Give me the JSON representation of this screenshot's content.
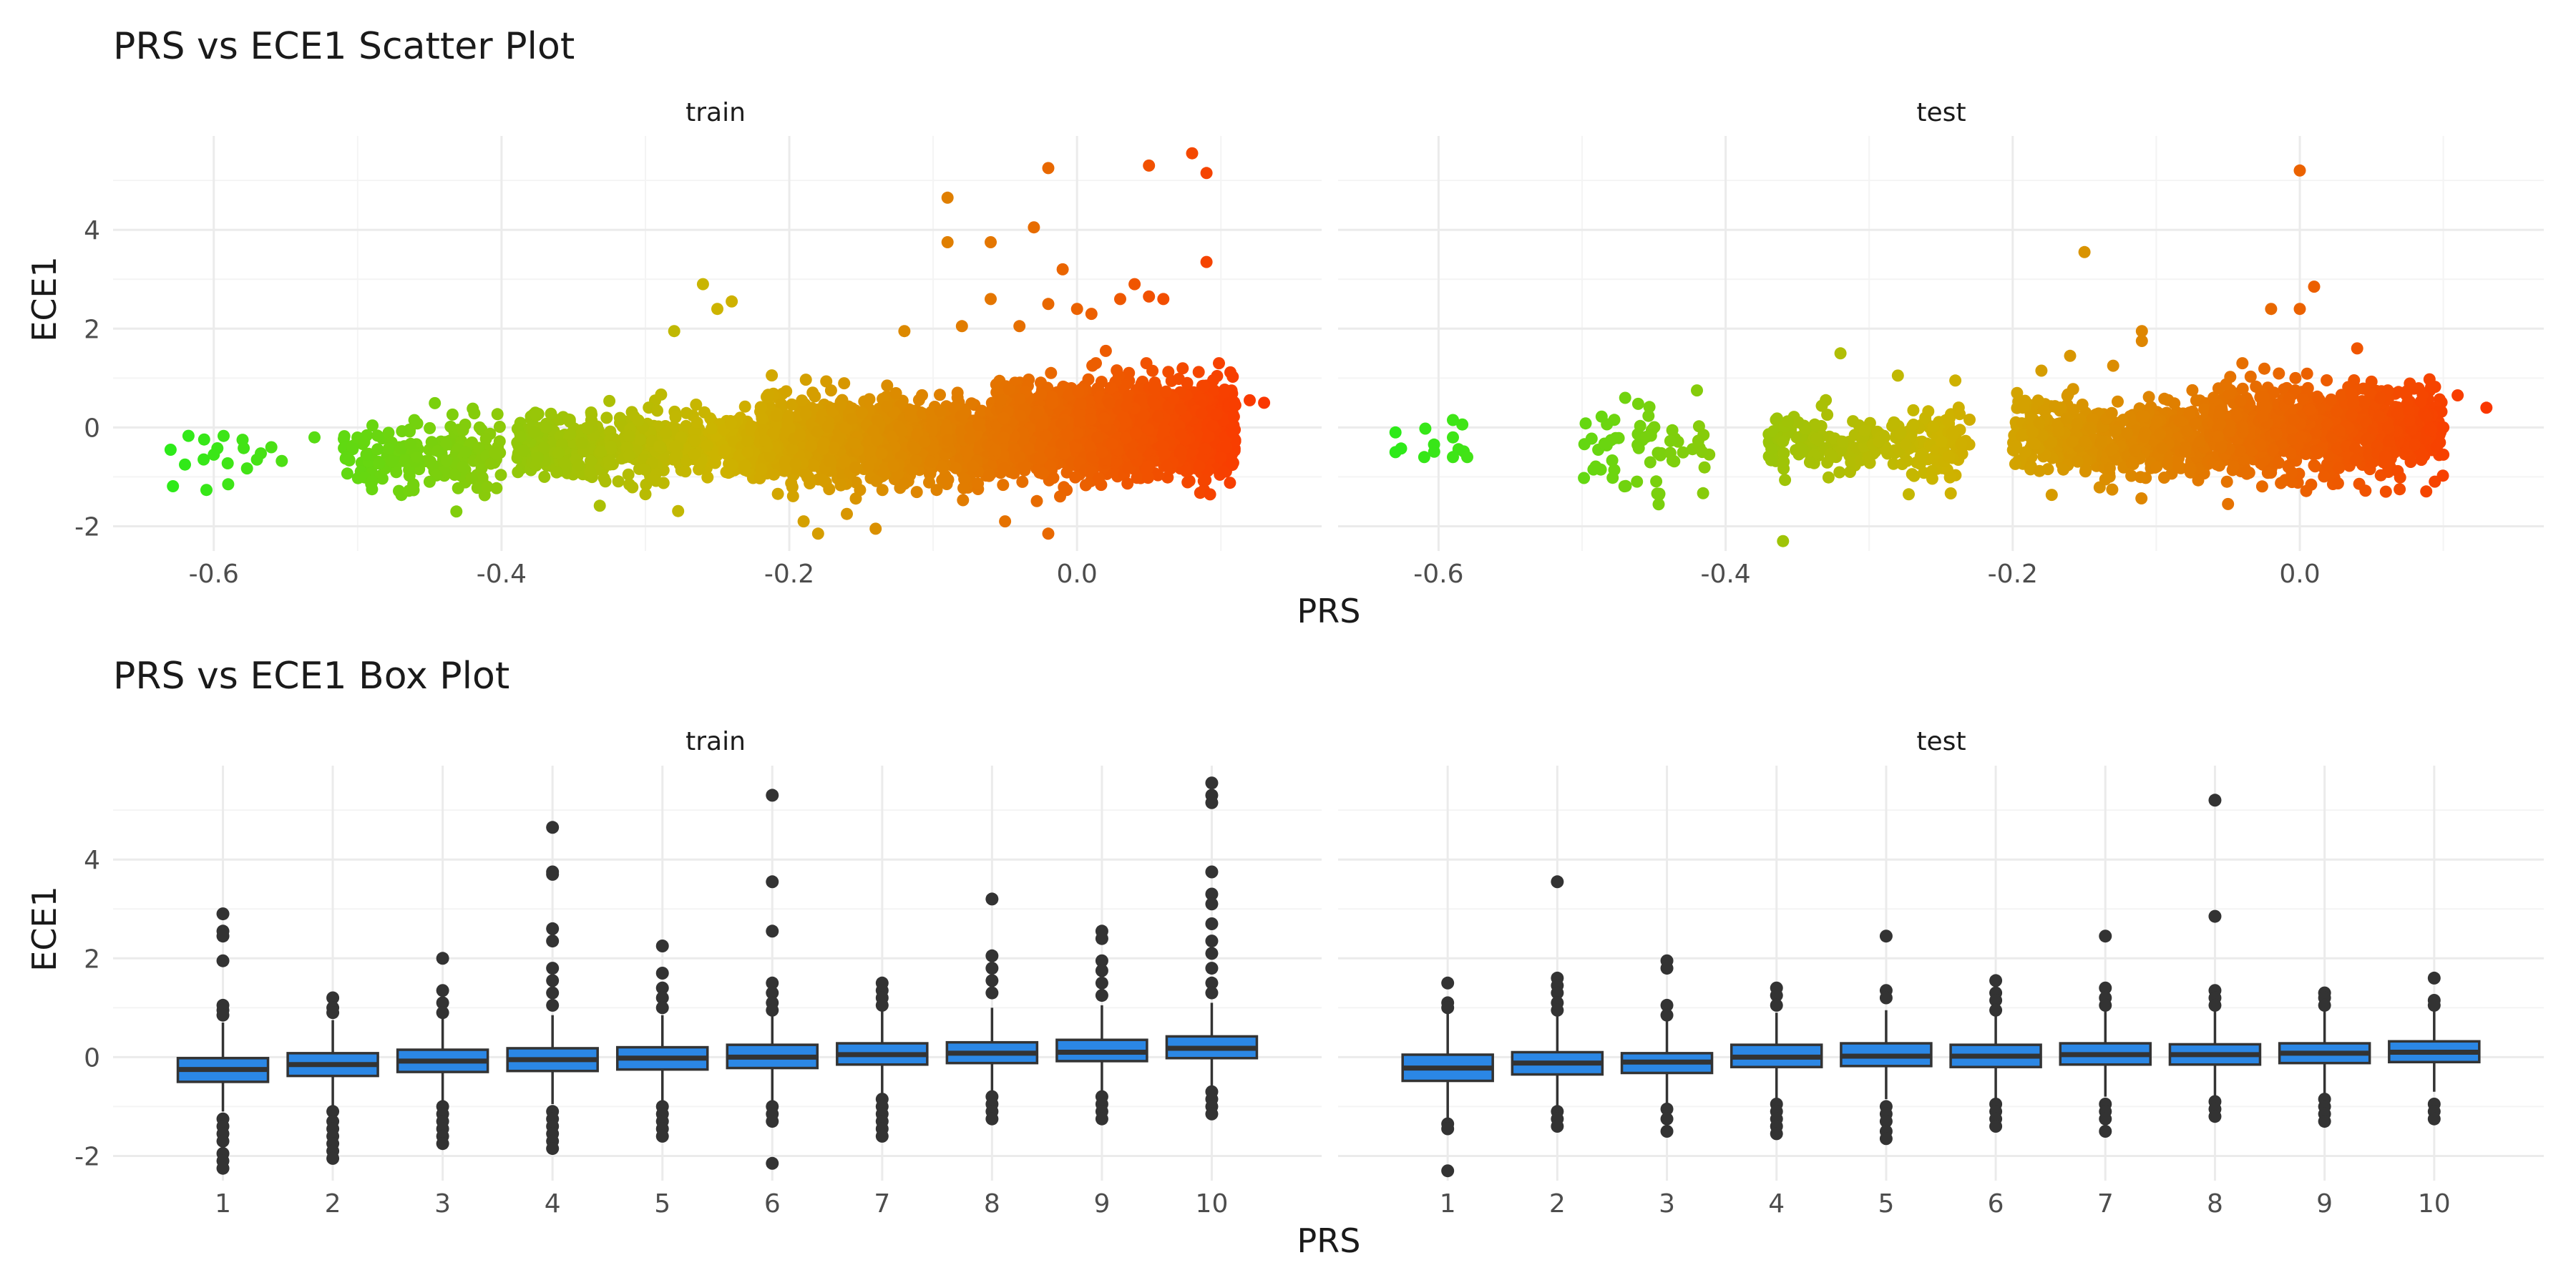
{
  "colors": {
    "grid_major": "#ebebeb",
    "grid_minor": "#f4f4f4",
    "box_fill": "#2b87e5",
    "box_line": "#333333",
    "outlier": "#333333",
    "gradient_low": "#1cf01c",
    "gradient_high": "#ff2a00"
  },
  "chart_data": [
    {
      "type": "scatter",
      "title": "PRS vs ECE1 Scatter Plot",
      "xlabel": "PRS",
      "ylabel": "ECE1",
      "facets": [
        "train",
        "test"
      ],
      "xlim": [
        -0.67,
        0.17
      ],
      "ylim": [
        -2.5,
        5.9
      ],
      "xticks": [
        -0.6,
        -0.4,
        -0.2,
        0.0
      ],
      "xtick_labels": [
        "-0.6",
        "-0.4",
        "-0.2",
        "0.0"
      ],
      "yticks": [
        -2,
        0,
        2,
        4
      ],
      "ytick_labels": [
        "-2",
        "0",
        "2",
        "4"
      ],
      "grid": true,
      "color_scale": {
        "variable": "PRS",
        "low": "#1cf01c",
        "high": "#ff2a00"
      },
      "series": [
        {
          "facet": "train",
          "clusters": [
            {
              "x_min": -0.63,
              "x_max": -0.55,
              "y_center": -0.5,
              "y_spread": 0.25,
              "count": 12
            },
            {
              "x_min": -0.51,
              "x_max": -0.4,
              "y_center": -0.55,
              "y_spread": 0.35,
              "count": 180
            },
            {
              "x_min": -0.39,
              "x_max": -0.22,
              "y_center": -0.35,
              "y_spread": 0.32,
              "count": 650
            },
            {
              "x_min": -0.22,
              "x_max": -0.06,
              "y_center": -0.25,
              "y_spread": 0.38,
              "count": 1300
            },
            {
              "x_min": -0.06,
              "x_max": 0.11,
              "y_center": -0.05,
              "y_spread": 0.42,
              "count": 2200
            }
          ],
          "outliers": [
            [
              -0.63,
              -0.45
            ],
            [
              -0.62,
              -0.75
            ],
            [
              -0.6,
              -0.55
            ],
            [
              -0.59,
              -1.15
            ],
            [
              -0.58,
              -0.25
            ],
            [
              -0.57,
              -0.65
            ],
            [
              -0.56,
              -0.4
            ],
            [
              -0.53,
              -0.2
            ],
            [
              -0.49,
              -1.25
            ],
            [
              -0.45,
              -1.1
            ],
            [
              -0.42,
              0.38
            ],
            [
              -0.41,
              -1.2
            ],
            [
              -0.3,
              -1.35
            ],
            [
              -0.28,
              1.95
            ],
            [
              -0.26,
              2.9
            ],
            [
              -0.25,
              2.4
            ],
            [
              -0.24,
              2.55
            ],
            [
              -0.19,
              -1.9
            ],
            [
              -0.18,
              -2.15
            ],
            [
              -0.16,
              -1.75
            ],
            [
              -0.14,
              -2.05
            ],
            [
              -0.12,
              1.95
            ],
            [
              -0.09,
              3.75
            ],
            [
              -0.09,
              4.65
            ],
            [
              -0.08,
              2.05
            ],
            [
              -0.06,
              2.6
            ],
            [
              -0.06,
              3.75
            ],
            [
              -0.05,
              -1.9
            ],
            [
              -0.04,
              2.05
            ],
            [
              -0.03,
              4.05
            ],
            [
              -0.02,
              2.5
            ],
            [
              -0.02,
              5.25
            ],
            [
              -0.02,
              -2.15
            ],
            [
              -0.01,
              3.2
            ],
            [
              0.0,
              2.4
            ],
            [
              0.01,
              2.3
            ],
            [
              0.02,
              1.55
            ],
            [
              0.03,
              2.6
            ],
            [
              0.04,
              2.9
            ],
            [
              0.05,
              5.3
            ],
            [
              0.05,
              2.65
            ],
            [
              0.06,
              2.6
            ],
            [
              0.08,
              5.55
            ],
            [
              0.09,
              5.15
            ],
            [
              0.09,
              3.35
            ],
            [
              0.1,
              -0.6
            ],
            [
              0.11,
              0.45
            ],
            [
              0.12,
              0.55
            ],
            [
              0.13,
              0.5
            ]
          ]
        },
        {
          "facet": "test",
          "clusters": [
            {
              "x_min": -0.63,
              "x_max": -0.58,
              "y_center": -0.35,
              "y_spread": 0.3,
              "count": 7
            },
            {
              "x_min": -0.5,
              "x_max": -0.41,
              "y_center": -0.45,
              "y_spread": 0.4,
              "count": 60
            },
            {
              "x_min": -0.37,
              "x_max": -0.23,
              "y_center": -0.3,
              "y_spread": 0.32,
              "count": 250
            },
            {
              "x_min": -0.2,
              "x_max": -0.06,
              "y_center": -0.25,
              "y_spread": 0.38,
              "count": 500
            },
            {
              "x_min": -0.06,
              "x_max": 0.1,
              "y_center": -0.05,
              "y_spread": 0.42,
              "count": 900
            }
          ],
          "outliers": [
            [
              -0.63,
              -0.1
            ],
            [
              -0.63,
              -0.5
            ],
            [
              -0.61,
              -0.6
            ],
            [
              -0.59,
              -0.6
            ],
            [
              -0.59,
              -0.2
            ],
            [
              -0.58,
              -0.6
            ],
            [
              -0.59,
              0.15
            ],
            [
              -0.47,
              0.6
            ],
            [
              -0.42,
              0.75
            ],
            [
              -0.36,
              -2.3
            ],
            [
              -0.32,
              1.5
            ],
            [
              -0.28,
              1.05
            ],
            [
              -0.24,
              0.95
            ],
            [
              -0.18,
              1.15
            ],
            [
              -0.16,
              1.45
            ],
            [
              -0.15,
              3.55
            ],
            [
              -0.13,
              1.25
            ],
            [
              -0.11,
              1.95
            ],
            [
              -0.11,
              1.75
            ],
            [
              -0.05,
              -1.55
            ],
            [
              -0.04,
              1.3
            ],
            [
              -0.02,
              2.4
            ],
            [
              0.0,
              5.2
            ],
            [
              0.0,
              2.4
            ],
            [
              0.01,
              2.85
            ],
            [
              0.04,
              1.6
            ],
            [
              0.06,
              -1.3
            ],
            [
              0.08,
              -0.35
            ],
            [
              0.1,
              -0.55
            ],
            [
              0.11,
              0.65
            ],
            [
              0.13,
              0.4
            ]
          ]
        }
      ]
    },
    {
      "type": "box",
      "title": "PRS vs ECE1 Box Plot",
      "xlabel": "PRS",
      "ylabel": "ECE1",
      "facets": [
        "train",
        "test"
      ],
      "categories": [
        "1",
        "2",
        "3",
        "4",
        "5",
        "6",
        "7",
        "8",
        "9",
        "10"
      ],
      "ylim": [
        -2.5,
        5.9
      ],
      "yticks": [
        -2,
        0,
        2,
        4
      ],
      "ytick_labels": [
        "-2",
        "0",
        "2",
        "4"
      ],
      "grid": true,
      "series": [
        {
          "name": "train",
          "boxes": [
            {
              "category": "1",
              "q1": -0.5,
              "median": -0.25,
              "q3": -0.02,
              "whisker_low": -1.1,
              "whisker_high": 0.7,
              "outliers": [
                2.9,
                2.55,
                2.45,
                1.95,
                1.05,
                0.95,
                0.85,
                -1.25,
                -1.4,
                -1.55,
                -1.7,
                -1.95,
                -2.1,
                -2.25
              ]
            },
            {
              "category": "2",
              "q1": -0.38,
              "median": -0.15,
              "q3": 0.08,
              "whisker_low": -1.0,
              "whisker_high": 0.75,
              "outliers": [
                1.2,
                1.0,
                0.9,
                -1.1,
                -1.3,
                -1.45,
                -1.6,
                -1.75,
                -1.9,
                -2.05
              ]
            },
            {
              "category": "3",
              "q1": -0.3,
              "median": -0.08,
              "q3": 0.15,
              "whisker_low": -0.95,
              "whisker_high": 0.8,
              "outliers": [
                2.0,
                1.35,
                1.1,
                0.9,
                -1.0,
                -1.15,
                -1.3,
                -1.45,
                -1.6,
                -1.75
              ]
            },
            {
              "category": "4",
              "q1": -0.28,
              "median": -0.05,
              "q3": 0.18,
              "whisker_low": -0.95,
              "whisker_high": 0.85,
              "outliers": [
                4.65,
                3.75,
                3.7,
                2.6,
                2.35,
                1.8,
                1.55,
                1.3,
                1.05,
                -1.1,
                -1.25,
                -1.4,
                -1.55,
                -1.7,
                -1.85
              ]
            },
            {
              "category": "5",
              "q1": -0.25,
              "median": -0.02,
              "q3": 0.2,
              "whisker_low": -0.9,
              "whisker_high": 0.85,
              "outliers": [
                2.25,
                1.7,
                1.4,
                1.2,
                1.0,
                -1.0,
                -1.15,
                -1.3,
                -1.45,
                -1.6
              ]
            },
            {
              "category": "6",
              "q1": -0.22,
              "median": 0.0,
              "q3": 0.25,
              "whisker_low": -0.9,
              "whisker_high": 0.9,
              "outliers": [
                5.3,
                3.55,
                2.55,
                1.5,
                1.3,
                1.1,
                0.95,
                -1.0,
                -1.15,
                -1.3,
                -2.15
              ]
            },
            {
              "category": "7",
              "q1": -0.15,
              "median": 0.05,
              "q3": 0.28,
              "whisker_low": -0.75,
              "whisker_high": 0.95,
              "outliers": [
                1.5,
                1.35,
                1.2,
                1.05,
                -0.85,
                -1.0,
                -1.15,
                -1.3,
                -1.45,
                -1.6
              ]
            },
            {
              "category": "8",
              "q1": -0.12,
              "median": 0.08,
              "q3": 0.3,
              "whisker_low": -0.75,
              "whisker_high": 1.0,
              "outliers": [
                3.2,
                2.05,
                1.8,
                1.55,
                1.3,
                -0.8,
                -0.95,
                -1.1,
                -1.25
              ]
            },
            {
              "category": "9",
              "q1": -0.08,
              "median": 0.1,
              "q3": 0.35,
              "whisker_low": -0.7,
              "whisker_high": 1.05,
              "outliers": [
                2.55,
                2.4,
                1.95,
                1.75,
                1.5,
                1.25,
                -0.8,
                -0.95,
                -1.1,
                -1.25
              ]
            },
            {
              "category": "10",
              "q1": -0.02,
              "median": 0.18,
              "q3": 0.42,
              "whisker_low": -0.6,
              "whisker_high": 1.1,
              "outliers": [
                5.55,
                5.3,
                5.15,
                3.75,
                3.3,
                3.1,
                2.7,
                2.35,
                2.1,
                1.8,
                1.5,
                1.3,
                -0.7,
                -0.85,
                -1.0,
                -1.15
              ]
            }
          ]
        },
        {
          "name": "test",
          "boxes": [
            {
              "category": "1",
              "q1": -0.48,
              "median": -0.22,
              "q3": 0.05,
              "whisker_low": -1.25,
              "whisker_high": 0.9,
              "outliers": [
                1.5,
                1.1,
                1.0,
                -1.35,
                -1.45,
                -2.3
              ]
            },
            {
              "category": "2",
              "q1": -0.35,
              "median": -0.12,
              "q3": 0.1,
              "whisker_low": -1.0,
              "whisker_high": 0.85,
              "outliers": [
                3.55,
                1.6,
                1.45,
                1.3,
                1.1,
                0.95,
                -1.1,
                -1.25,
                -1.4
              ]
            },
            {
              "category": "3",
              "q1": -0.32,
              "median": -0.1,
              "q3": 0.08,
              "whisker_low": -0.95,
              "whisker_high": 0.75,
              "outliers": [
                1.95,
                1.8,
                1.05,
                0.85,
                -1.05,
                -1.25,
                -1.5
              ]
            },
            {
              "category": "4",
              "q1": -0.2,
              "median": 0.0,
              "q3": 0.25,
              "whisker_low": -0.9,
              "whisker_high": 0.9,
              "outliers": [
                1.4,
                1.25,
                1.05,
                -0.95,
                -1.1,
                -1.25,
                -1.4,
                -1.55
              ]
            },
            {
              "category": "5",
              "q1": -0.18,
              "median": 0.02,
              "q3": 0.28,
              "whisker_low": -0.85,
              "whisker_high": 0.95,
              "outliers": [
                2.45,
                1.35,
                1.2,
                -1.0,
                -1.15,
                -1.3,
                -1.5,
                -1.65
              ]
            },
            {
              "category": "6",
              "q1": -0.2,
              "median": 0.02,
              "q3": 0.25,
              "whisker_low": -0.85,
              "whisker_high": 0.9,
              "outliers": [
                1.55,
                1.3,
                1.15,
                0.95,
                -0.95,
                -1.1,
                -1.25,
                -1.4
              ]
            },
            {
              "category": "7",
              "q1": -0.15,
              "median": 0.05,
              "q3": 0.28,
              "whisker_low": -0.8,
              "whisker_high": 0.95,
              "outliers": [
                2.45,
                1.4,
                1.2,
                1.05,
                -0.95,
                -1.1,
                -1.25,
                -1.5
              ]
            },
            {
              "category": "8",
              "q1": -0.15,
              "median": 0.05,
              "q3": 0.26,
              "whisker_low": -0.8,
              "whisker_high": 0.95,
              "outliers": [
                5.2,
                2.85,
                1.35,
                1.2,
                1.05,
                -0.9,
                -1.05,
                -1.2
              ]
            },
            {
              "category": "9",
              "q1": -0.12,
              "median": 0.08,
              "q3": 0.28,
              "whisker_low": -0.75,
              "whisker_high": 0.95,
              "outliers": [
                1.3,
                1.2,
                1.05,
                -0.85,
                -1.0,
                -1.15,
                -1.3
              ]
            },
            {
              "category": "10",
              "q1": -0.1,
              "median": 0.1,
              "q3": 0.32,
              "whisker_low": -0.7,
              "whisker_high": 0.95,
              "outliers": [
                1.6,
                1.15,
                1.05,
                -0.95,
                -1.1,
                -1.25
              ]
            }
          ]
        }
      ]
    }
  ]
}
